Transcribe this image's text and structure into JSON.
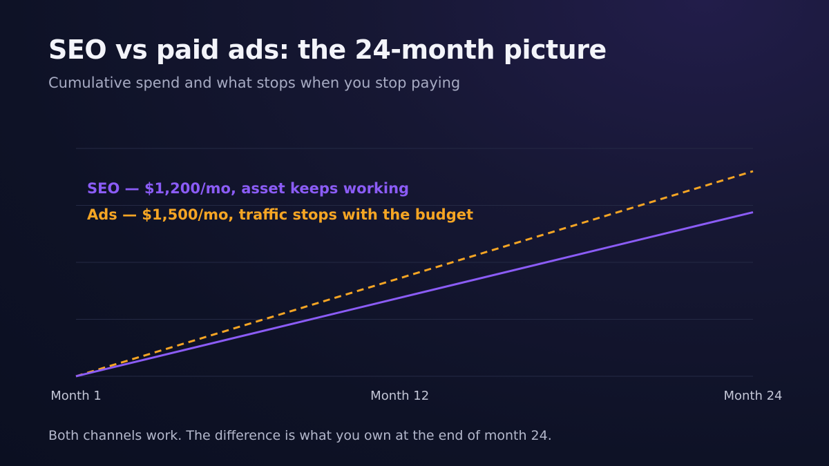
{
  "header": {
    "title": "SEO vs paid ads: the 24-month picture",
    "subtitle": "Cumulative spend and what stops when you stop paying"
  },
  "footer": {
    "note": "Both channels work. The difference is what you own at the end of month 24."
  },
  "colors": {
    "seo": "#8b5cf6",
    "ads": "#f5a524",
    "grid": "#252a45"
  },
  "chart_data": {
    "type": "line",
    "x": [
      1,
      12,
      24
    ],
    "xtick_labels": [
      "Month 1",
      "Month 12",
      "Month 24"
    ],
    "xlim": [
      1,
      24
    ],
    "ylim": [
      0,
      40000
    ],
    "grid": true,
    "legend_position": "top-left",
    "series": [
      {
        "name": "SEO — $1,200/mo, asset keeps working",
        "style": "solid",
        "color": "#8b5cf6",
        "x": [
          1,
          24
        ],
        "y": [
          0,
          28800
        ]
      },
      {
        "name": "Ads — $1,500/mo, traffic stops with the budget",
        "style": "dashed",
        "color": "#f5a524",
        "x": [
          1,
          24
        ],
        "y": [
          0,
          36000
        ]
      }
    ]
  }
}
